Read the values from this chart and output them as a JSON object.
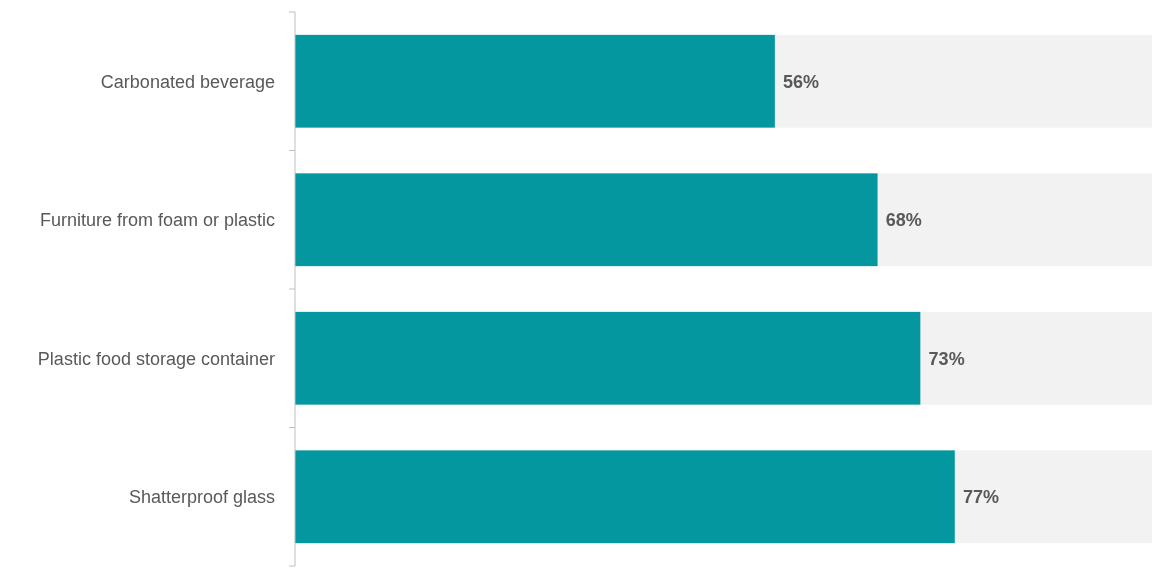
{
  "chart_data": {
    "type": "bar",
    "orientation": "horizontal",
    "stacked": true,
    "categories": [
      "Carbonated beverage",
      "Furniture from foam or plastic",
      "Plastic food storage container",
      "Shatterproof glass"
    ],
    "series": [
      {
        "color": "#05979f",
        "values": [
          56,
          68,
          73,
          77
        ],
        "value_labels": [
          "56%",
          "68%",
          "73%",
          "77%"
        ]
      },
      {
        "color": "#f2f2f2",
        "values": [
          44,
          32,
          27,
          23
        ]
      }
    ],
    "xlim": [
      0,
      100
    ],
    "tick_labels": "y"
  }
}
